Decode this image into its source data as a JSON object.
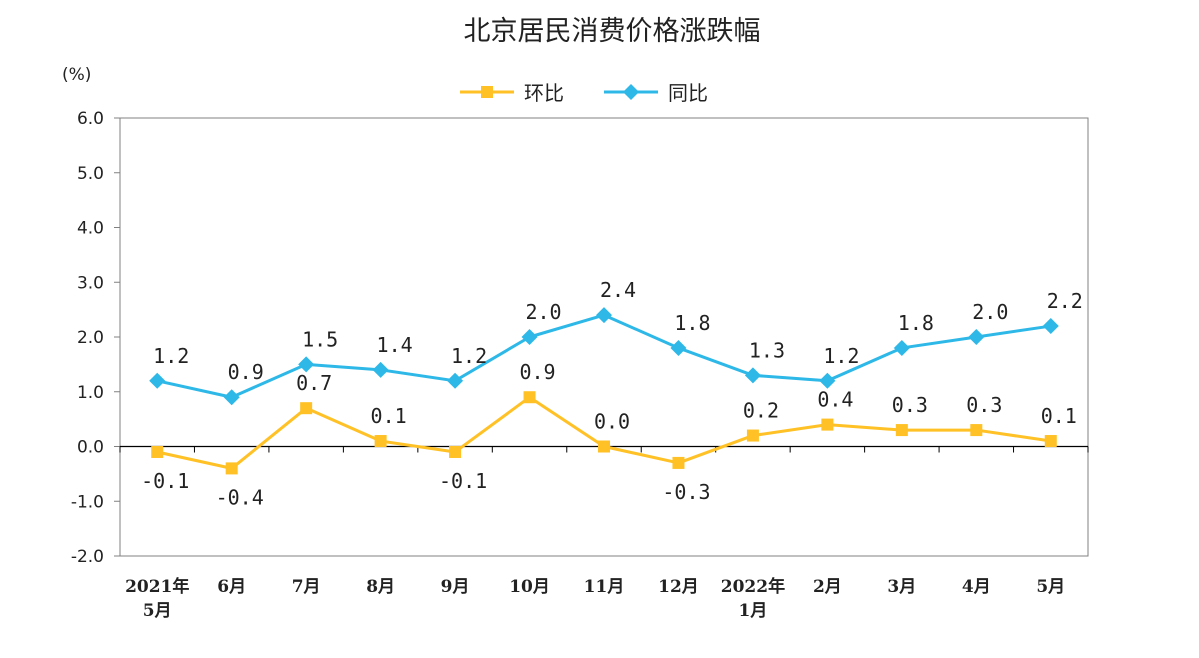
{
  "chart_data": {
    "type": "line",
    "title": "北京居民消费价格涨跌幅",
    "unit_label": "(%)",
    "categories": [
      [
        "2021年",
        "5月"
      ],
      [
        "6月"
      ],
      [
        "7月"
      ],
      [
        "8月"
      ],
      [
        "9月"
      ],
      [
        "10月"
      ],
      [
        "11月"
      ],
      [
        "12月"
      ],
      [
        "2022年",
        "1月"
      ],
      [
        "2月"
      ],
      [
        "3月"
      ],
      [
        "4月"
      ],
      [
        "5月"
      ]
    ],
    "ylim": [
      -2.0,
      6.0
    ],
    "yticks": [
      "6.0",
      "5.0",
      "4.0",
      "3.0",
      "2.0",
      "1.0",
      "0.0",
      "-1.0",
      "-2.0"
    ],
    "legend_position": "top-center",
    "grid": false,
    "series": [
      {
        "name": "环比",
        "color": "#FFC125",
        "marker": "square",
        "values": [
          -0.1,
          -0.4,
          0.7,
          0.1,
          -0.1,
          0.9,
          0.0,
          -0.3,
          0.2,
          0.4,
          0.3,
          0.3,
          0.1
        ],
        "labels": [
          "-0.1",
          "-0.4",
          "0.7",
          "0.1",
          "-0.1",
          "0.9",
          "0.0",
          "-0.3",
          "0.2",
          "0.4",
          "0.3",
          "0.3",
          "0.1"
        ]
      },
      {
        "name": "同比",
        "color": "#2DB8E8",
        "marker": "diamond",
        "values": [
          1.2,
          0.9,
          1.5,
          1.4,
          1.2,
          2.0,
          2.4,
          1.8,
          1.3,
          1.2,
          1.8,
          2.0,
          2.2
        ],
        "labels": [
          "1.2",
          "0.9",
          "1.5",
          "1.4",
          "1.2",
          "2.0",
          "2.4",
          "1.8",
          "1.3",
          "1.2",
          "1.8",
          "2.0",
          "2.2"
        ]
      }
    ]
  }
}
